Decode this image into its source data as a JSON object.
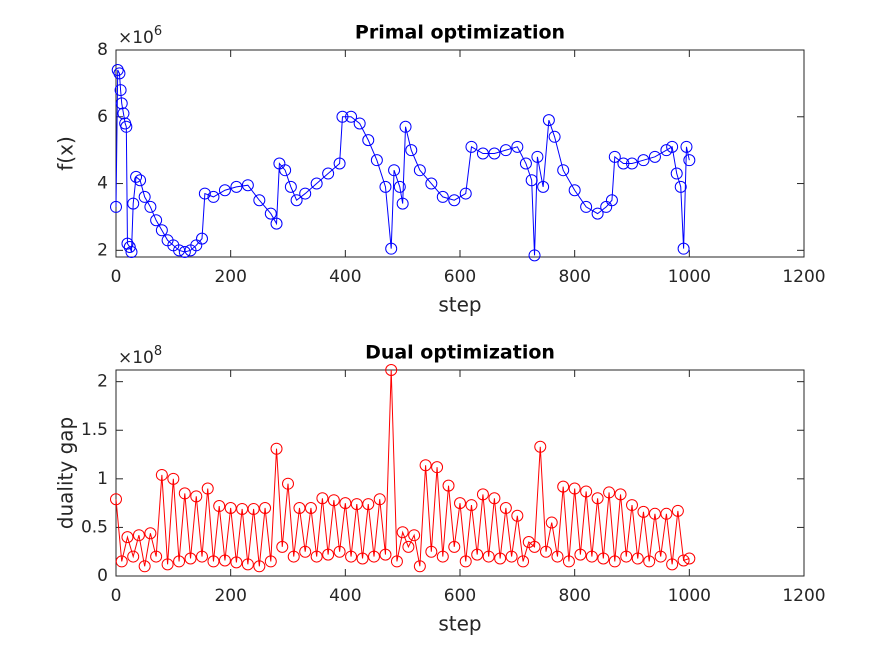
{
  "chart_data": [
    {
      "type": "line",
      "title": "Primal optimization",
      "xlabel": "step",
      "ylabel": "f(x)",
      "y_multiplier_base": "×10",
      "y_multiplier_exponent": "6",
      "xlim": [
        0,
        1200
      ],
      "xticks": [
        0,
        200,
        400,
        600,
        800,
        1000,
        1200
      ],
      "ylim": [
        1.8,
        8
      ],
      "yticks": [
        2,
        4,
        6,
        8
      ],
      "series": [
        {
          "color": "#0000ff",
          "x": [
            0,
            3,
            6,
            8,
            10,
            13,
            16,
            18,
            20,
            24,
            27,
            30,
            35,
            42,
            50,
            60,
            70,
            80,
            90,
            100,
            110,
            120,
            130,
            140,
            150,
            155,
            170,
            190,
            210,
            230,
            250,
            270,
            280,
            285,
            295,
            305,
            315,
            330,
            350,
            370,
            390,
            395,
            410,
            425,
            440,
            455,
            470,
            480,
            485,
            495,
            500,
            505,
            515,
            530,
            550,
            570,
            590,
            610,
            620,
            640,
            660,
            680,
            700,
            715,
            725,
            730,
            735,
            745,
            755,
            765,
            780,
            800,
            820,
            840,
            855,
            865,
            870,
            885,
            900,
            920,
            940,
            960,
            970,
            978,
            985,
            990,
            995,
            1000
          ],
          "values": [
            3.3,
            7.4,
            7.3,
            6.8,
            6.4,
            6.1,
            5.8,
            5.7,
            2.2,
            2.1,
            1.95,
            3.4,
            4.2,
            4.1,
            3.6,
            3.3,
            2.9,
            2.6,
            2.3,
            2.15,
            2.0,
            1.95,
            2.0,
            2.15,
            2.35,
            3.7,
            3.6,
            3.8,
            3.9,
            3.95,
            3.5,
            3.1,
            2.8,
            4.6,
            4.4,
            3.9,
            3.5,
            3.7,
            4.0,
            4.3,
            4.6,
            6.0,
            6.0,
            5.8,
            5.3,
            4.7,
            3.9,
            2.05,
            4.4,
            3.9,
            3.4,
            5.7,
            5.0,
            4.4,
            4.0,
            3.6,
            3.5,
            3.7,
            5.1,
            4.9,
            4.9,
            5.0,
            5.1,
            4.6,
            4.1,
            1.85,
            4.8,
            3.9,
            5.9,
            5.4,
            4.4,
            3.8,
            3.3,
            3.1,
            3.3,
            3.5,
            4.8,
            4.6,
            4.6,
            4.7,
            4.8,
            5.0,
            5.1,
            4.3,
            3.9,
            2.05,
            5.1,
            4.7
          ]
        }
      ]
    },
    {
      "type": "line",
      "title": "Dual optimization",
      "xlabel": "step",
      "ylabel": "duality gap",
      "y_multiplier_base": "×10",
      "y_multiplier_exponent": "8",
      "xlim": [
        0,
        1200
      ],
      "xticks": [
        0,
        200,
        400,
        600,
        800,
        1000,
        1200
      ],
      "ylim": [
        0,
        2.12
      ],
      "yticks": [
        0,
        0.5,
        1,
        1.5,
        2
      ],
      "series": [
        {
          "color": "#ff0000",
          "x": [
            0,
            10,
            20,
            30,
            40,
            50,
            60,
            70,
            80,
            90,
            100,
            110,
            120,
            130,
            140,
            150,
            160,
            170,
            180,
            190,
            200,
            210,
            220,
            230,
            240,
            250,
            260,
            270,
            280,
            290,
            300,
            310,
            320,
            330,
            340,
            350,
            360,
            370,
            380,
            390,
            400,
            410,
            420,
            430,
            440,
            450,
            460,
            470,
            480,
            490,
            500,
            510,
            520,
            530,
            540,
            550,
            560,
            570,
            580,
            590,
            600,
            610,
            620,
            630,
            640,
            650,
            660,
            670,
            680,
            690,
            700,
            710,
            720,
            730,
            740,
            750,
            760,
            770,
            780,
            790,
            800,
            810,
            820,
            830,
            840,
            850,
            860,
            870,
            880,
            890,
            900,
            910,
            920,
            930,
            940,
            950,
            960,
            970,
            980,
            990,
            1000
          ],
          "values": [
            0.79,
            0.15,
            0.4,
            0.2,
            0.42,
            0.1,
            0.44,
            0.2,
            1.04,
            0.12,
            1.0,
            0.15,
            0.85,
            0.18,
            0.82,
            0.2,
            0.9,
            0.15,
            0.72,
            0.16,
            0.7,
            0.14,
            0.69,
            0.12,
            0.69,
            0.1,
            0.7,
            0.15,
            1.31,
            0.3,
            0.95,
            0.2,
            0.7,
            0.25,
            0.7,
            0.2,
            0.8,
            0.22,
            0.78,
            0.25,
            0.75,
            0.2,
            0.74,
            0.18,
            0.74,
            0.2,
            0.79,
            0.22,
            2.12,
            0.15,
            0.45,
            0.3,
            0.42,
            0.1,
            1.14,
            0.25,
            1.12,
            0.2,
            0.93,
            0.3,
            0.75,
            0.15,
            0.73,
            0.22,
            0.84,
            0.2,
            0.8,
            0.18,
            0.7,
            0.2,
            0.62,
            0.15,
            0.35,
            0.3,
            1.33,
            0.25,
            0.55,
            0.2,
            0.92,
            0.15,
            0.9,
            0.22,
            0.87,
            0.2,
            0.8,
            0.18,
            0.86,
            0.15,
            0.84,
            0.2,
            0.73,
            0.18,
            0.66,
            0.15,
            0.64,
            0.2,
            0.64,
            0.12,
            0.67,
            0.16,
            0.18
          ]
        }
      ]
    }
  ]
}
